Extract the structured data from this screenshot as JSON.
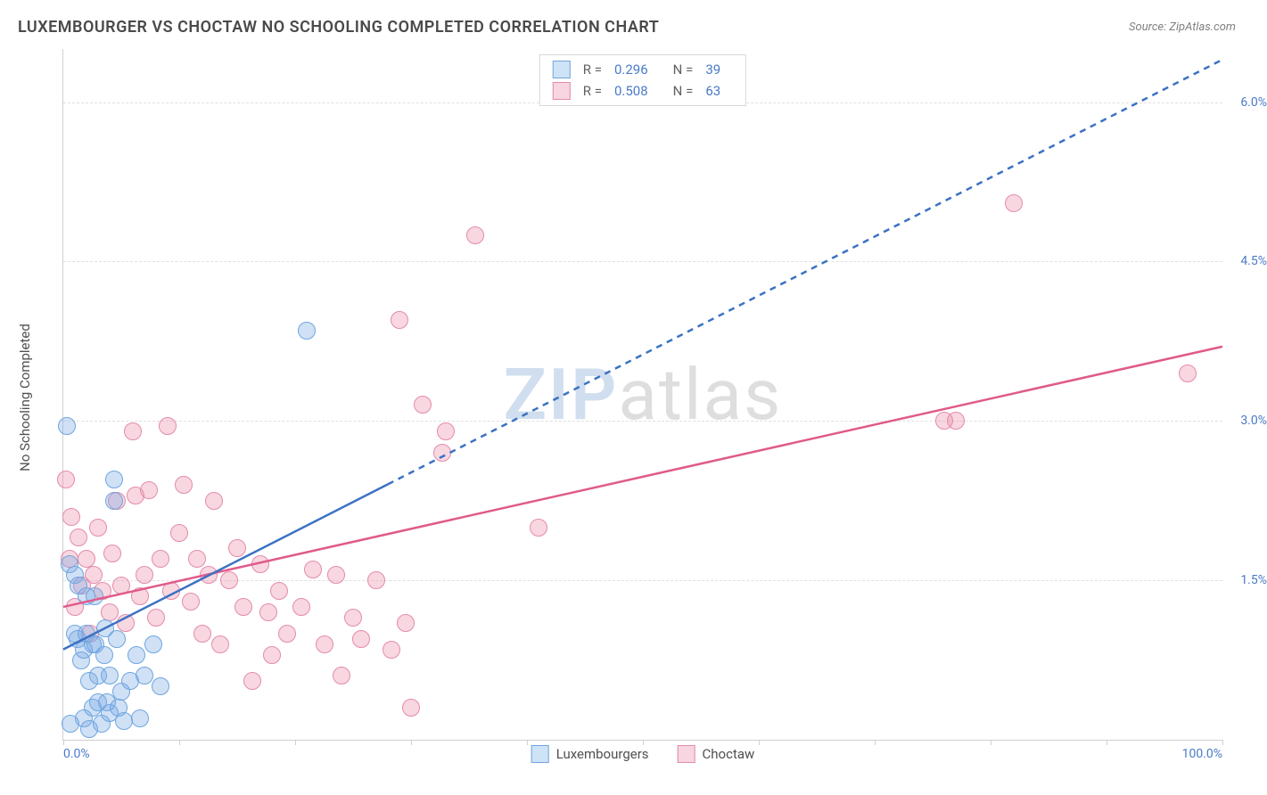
{
  "header": {
    "title": "LUXEMBOURGER VS CHOCTAW NO SCHOOLING COMPLETED CORRELATION CHART",
    "source": "Source: ZipAtlas.com"
  },
  "watermark": {
    "part1": "ZIP",
    "part2": "atlas"
  },
  "chart": {
    "type": "scatter",
    "ylabel": "No Schooling Completed",
    "xlim": [
      0,
      100
    ],
    "ylim": [
      0,
      6.5
    ],
    "x_ticks_minor": [
      0,
      10,
      20,
      30,
      40,
      50,
      60,
      70,
      80,
      90,
      100
    ],
    "x_ticks_major": [
      0,
      100
    ],
    "x_tick_labels": {
      "0": "0.0%",
      "100": "100.0%"
    },
    "y_grid": [
      1.5,
      3.0,
      4.5,
      6.0
    ],
    "y_tick_labels": {
      "1.5": "1.5%",
      "3.0": "3.0%",
      "4.5": "4.5%",
      "6.0": "6.0%"
    },
    "background_color": "#ffffff",
    "grid_color": "#e0e0e0"
  },
  "series": {
    "lux": {
      "label": "Luxembourgers",
      "fill": "rgba(120,170,230,0.35)",
      "stroke": "#6fa6de",
      "line_color": "#3b72c4",
      "swatch_fill": "#cfe3f7",
      "swatch_border": "#6fa6de",
      "r": 0.296,
      "n": 39,
      "marker_size": 18,
      "trend": {
        "x1": 0,
        "y1": 0.85,
        "x2": 100,
        "y2": 6.4,
        "dash_from_x": 28
      },
      "points": [
        [
          0.3,
          2.95
        ],
        [
          0.5,
          1.65
        ],
        [
          0.6,
          0.15
        ],
        [
          1,
          1.0
        ],
        [
          1,
          1.55
        ],
        [
          1.2,
          0.95
        ],
        [
          1.3,
          1.45
        ],
        [
          1.5,
          0.75
        ],
        [
          1.8,
          0.2
        ],
        [
          1.8,
          0.85
        ],
        [
          2,
          1.0
        ],
        [
          2,
          1.35
        ],
        [
          2.2,
          0.1
        ],
        [
          2.2,
          0.55
        ],
        [
          2.5,
          0.3
        ],
        [
          2.5,
          0.9
        ],
        [
          2.7,
          1.35
        ],
        [
          2.8,
          0.9
        ],
        [
          3,
          0.35
        ],
        [
          3,
          0.6
        ],
        [
          3.3,
          0.15
        ],
        [
          3.5,
          0.8
        ],
        [
          3.6,
          1.05
        ],
        [
          3.8,
          0.35
        ],
        [
          4,
          0.25
        ],
        [
          4,
          0.6
        ],
        [
          4.4,
          2.25
        ],
        [
          4.4,
          2.45
        ],
        [
          4.6,
          0.95
        ],
        [
          4.8,
          0.3
        ],
        [
          5,
          0.45
        ],
        [
          5.2,
          0.18
        ],
        [
          5.8,
          0.55
        ],
        [
          6.3,
          0.8
        ],
        [
          6.6,
          0.2
        ],
        [
          7,
          0.6
        ],
        [
          7.8,
          0.9
        ],
        [
          8.4,
          0.5
        ],
        [
          21,
          3.85
        ]
      ]
    },
    "cho": {
      "label": "Choctaw",
      "fill": "rgba(235,140,170,0.35)",
      "stroke": "#e48bab",
      "line_color": "#e05a8a",
      "swatch_fill": "#f7d5e1",
      "swatch_border": "#e48bab",
      "r": 0.508,
      "n": 63,
      "marker_size": 18,
      "trend": {
        "x1": 0,
        "y1": 1.25,
        "x2": 100,
        "y2": 3.7
      },
      "points": [
        [
          0.2,
          2.45
        ],
        [
          0.5,
          1.7
        ],
        [
          0.7,
          2.1
        ],
        [
          1,
          1.25
        ],
        [
          1.3,
          1.9
        ],
        [
          1.6,
          1.45
        ],
        [
          2,
          1.7
        ],
        [
          2.3,
          1.0
        ],
        [
          2.6,
          1.55
        ],
        [
          3,
          2.0
        ],
        [
          3.4,
          1.4
        ],
        [
          4,
          1.2
        ],
        [
          4.2,
          1.75
        ],
        [
          4.6,
          2.25
        ],
        [
          5,
          1.45
        ],
        [
          5.4,
          1.1
        ],
        [
          6,
          2.9
        ],
        [
          6.2,
          2.3
        ],
        [
          6.6,
          1.35
        ],
        [
          7,
          1.55
        ],
        [
          7.4,
          2.35
        ],
        [
          8,
          1.15
        ],
        [
          8.4,
          1.7
        ],
        [
          9,
          2.95
        ],
        [
          9.3,
          1.4
        ],
        [
          10,
          1.95
        ],
        [
          10.4,
          2.4
        ],
        [
          11,
          1.3
        ],
        [
          11.5,
          1.7
        ],
        [
          12,
          1.0
        ],
        [
          12.5,
          1.55
        ],
        [
          13,
          2.25
        ],
        [
          13.5,
          0.9
        ],
        [
          14.3,
          1.5
        ],
        [
          15,
          1.8
        ],
        [
          15.5,
          1.25
        ],
        [
          16.3,
          0.55
        ],
        [
          17,
          1.65
        ],
        [
          17.7,
          1.2
        ],
        [
          18,
          0.8
        ],
        [
          18.6,
          1.4
        ],
        [
          19.3,
          1.0
        ],
        [
          20.5,
          1.25
        ],
        [
          21.5,
          1.6
        ],
        [
          22.5,
          0.9
        ],
        [
          23.5,
          1.55
        ],
        [
          24,
          0.6
        ],
        [
          25,
          1.15
        ],
        [
          25.7,
          0.95
        ],
        [
          27,
          1.5
        ],
        [
          28.3,
          0.85
        ],
        [
          29,
          3.95
        ],
        [
          29.5,
          1.1
        ],
        [
          30,
          0.3
        ],
        [
          31,
          3.15
        ],
        [
          32.7,
          2.7
        ],
        [
          33,
          2.9
        ],
        [
          35.5,
          4.75
        ],
        [
          41,
          2.0
        ],
        [
          76,
          3.0
        ],
        [
          77,
          3.0
        ],
        [
          82,
          5.05
        ],
        [
          97,
          3.45
        ]
      ]
    }
  },
  "legend_top": {
    "r_label": "R =",
    "n_label": "N ="
  }
}
